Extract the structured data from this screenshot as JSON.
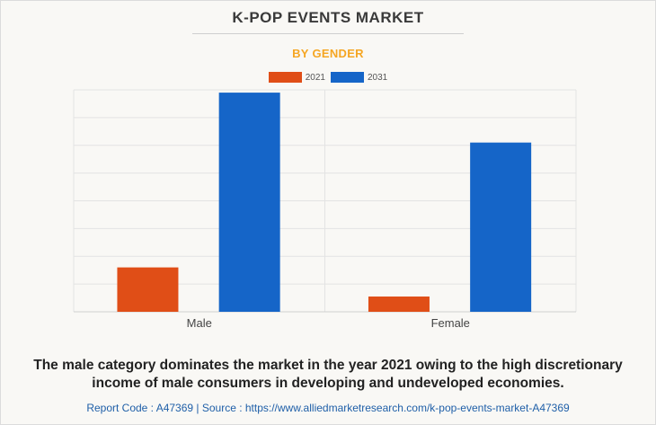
{
  "header": {
    "title": "K-POP EVENTS MARKET",
    "subtitle": "BY GENDER"
  },
  "chart_data": {
    "type": "bar",
    "title": "K-POP EVENTS MARKET",
    "subtitle": "BY GENDER",
    "categories": [
      "Male",
      "Female"
    ],
    "series": [
      {
        "name": "2021",
        "color": "#e04e17",
        "values": [
          1.6,
          0.55
        ]
      },
      {
        "name": "2031",
        "color": "#1565c8",
        "values": [
          7.9,
          6.1
        ]
      }
    ],
    "ylim": [
      0,
      8
    ],
    "xlabel": "",
    "ylabel": "",
    "grid": true,
    "legend": "top-center"
  },
  "footer": {
    "description": "The male category dominates the market in the year 2021 owing to the high discretionary income of male consumers in developing and undeveloped economies.",
    "report": "Report Code : A47369  |  Source : https://www.alliedmarketresearch.com/k-pop-events-market-A47369"
  }
}
